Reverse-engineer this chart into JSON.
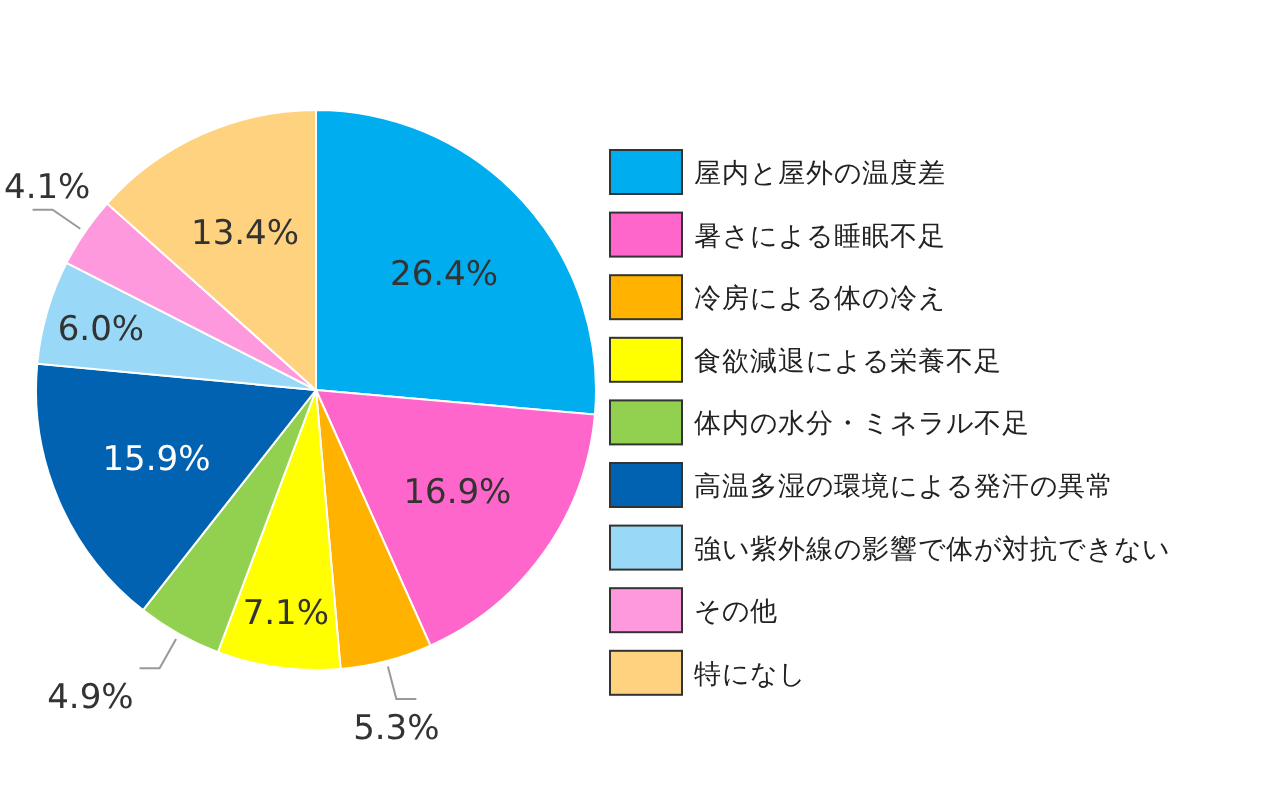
{
  "chart_data": {
    "type": "pie",
    "categories": [
      "屋内と屋外の温度差",
      "暑さによる睡眠不足",
      "冷房による体の冷え",
      "食欲減退による栄養不足",
      "体内の水分・ミネラル不足",
      "高温多湿の環境による発汗の異常",
      "強い紫外線の影響で体が対抗できない",
      "その他",
      "特になし"
    ],
    "values": [
      26.4,
      16.9,
      5.3,
      7.1,
      4.9,
      15.9,
      6.0,
      4.1,
      13.4
    ],
    "colors": [
      "#00aeef",
      "#ff66cc",
      "#ffb300",
      "#ffff00",
      "#92d050",
      "#0062b1",
      "#99d9f7",
      "#ff99dd",
      "#ffd280"
    ],
    "value_labels": [
      "26.4%",
      "16.9%",
      "5.3%",
      "7.1%",
      "4.9%",
      "15.9%",
      "6.0%",
      "4.1%",
      "13.4%"
    ],
    "legend": "right"
  }
}
